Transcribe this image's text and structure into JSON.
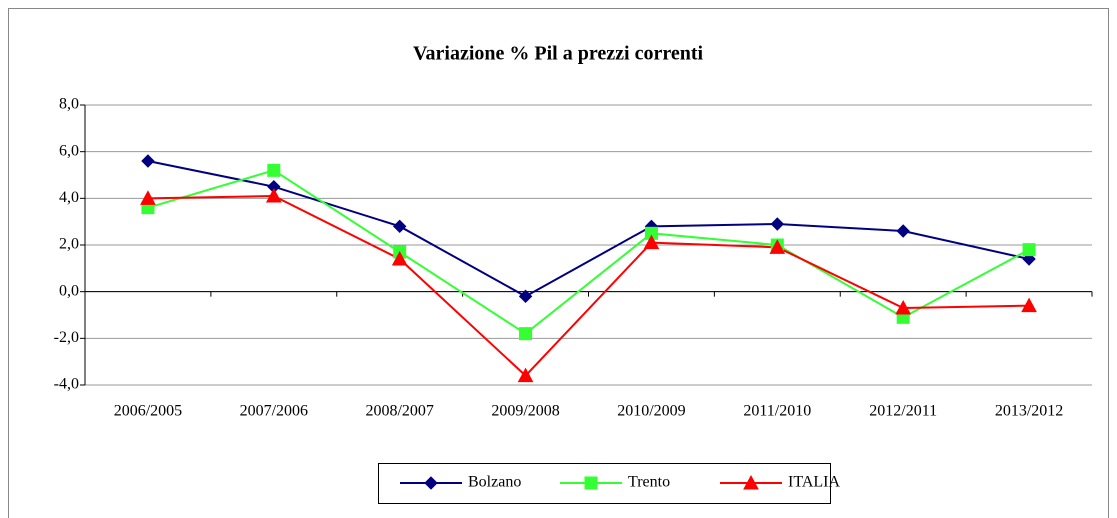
{
  "chart_data": {
    "type": "line",
    "title": "Variazione % Pil a prezzi correnti",
    "categories": [
      "2006/2005",
      "2007/2006",
      "2008/2007",
      "2009/2008",
      "2010/2009",
      "2011/2010",
      "2012/2011",
      "2013/2012"
    ],
    "series": [
      {
        "name": "Bolzano",
        "color": "#000080",
        "marker": "diamond",
        "values": [
          5.6,
          4.5,
          2.8,
          -0.2,
          2.8,
          2.9,
          2.6,
          1.4
        ]
      },
      {
        "name": "Trento",
        "color": "#33ff33",
        "marker": "square",
        "values": [
          3.6,
          5.2,
          1.7,
          -1.8,
          2.5,
          2.0,
          -1.1,
          1.8
        ]
      },
      {
        "name": "ITALIA",
        "color": "#ff0000",
        "marker": "triangle",
        "values": [
          4.0,
          4.1,
          1.4,
          -3.6,
          2.1,
          1.9,
          -0.7,
          -0.6
        ]
      }
    ],
    "ylim": [
      -4,
      8
    ],
    "yticks": [
      {
        "value": -4,
        "label": "-4,0"
      },
      {
        "value": -2,
        "label": "-2,0"
      },
      {
        "value": 0,
        "label": "0,0"
      },
      {
        "value": 2,
        "label": "2,0"
      },
      {
        "value": 4,
        "label": "4,0"
      },
      {
        "value": 6,
        "label": "6,0"
      },
      {
        "value": 8,
        "label": "8,0"
      }
    ],
    "grid": true,
    "legend": "bottom"
  }
}
